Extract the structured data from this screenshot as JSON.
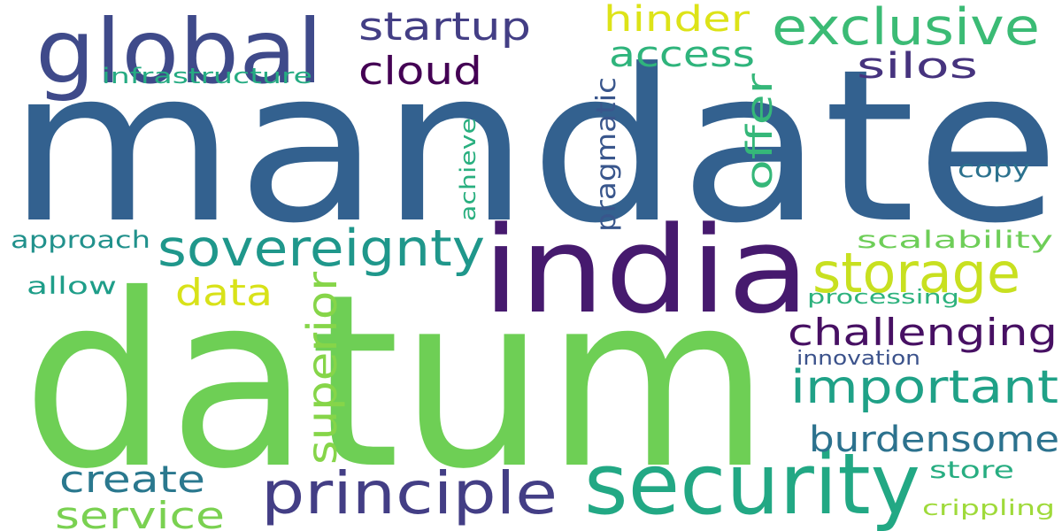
{
  "background": "#ffffff",
  "words": [
    {
      "text": "mandate",
      "color": "#33618f",
      "vertical": false
    },
    {
      "text": "datum",
      "color": "#6ecf55",
      "vertical": false
    },
    {
      "text": "india",
      "color": "#461a6e",
      "vertical": false
    },
    {
      "text": "security",
      "color": "#22a884",
      "vertical": false
    },
    {
      "text": "global",
      "color": "#3f4a8a",
      "vertical": false
    },
    {
      "text": "principle",
      "color": "#433e85",
      "vertical": false
    },
    {
      "text": "sovereignty",
      "color": "#1f978b",
      "vertical": false
    },
    {
      "text": "exclusive",
      "color": "#3bbb75",
      "vertical": false
    },
    {
      "text": "important",
      "color": "#1fa187",
      "vertical": false
    },
    {
      "text": "storage",
      "color": "#c8e020",
      "vertical": false
    },
    {
      "text": "superior",
      "color": "#86d549",
      "vertical": true
    },
    {
      "text": "challenging",
      "color": "#471063",
      "vertical": false
    },
    {
      "text": "burdensome",
      "color": "#2c728e",
      "vertical": false
    },
    {
      "text": "startup",
      "color": "#433e85",
      "vertical": false
    },
    {
      "text": "cloud",
      "color": "#440154",
      "vertical": false
    },
    {
      "text": "access",
      "color": "#2fb47c",
      "vertical": false
    },
    {
      "text": "hinder",
      "color": "#dde318",
      "vertical": false
    },
    {
      "text": "silos",
      "color": "#46337e",
      "vertical": false
    },
    {
      "text": "create",
      "color": "#2a788e",
      "vertical": false
    },
    {
      "text": "service",
      "color": "#7ad151",
      "vertical": false
    },
    {
      "text": "data",
      "color": "#d8e219",
      "vertical": false
    },
    {
      "text": "offer",
      "color": "#35b779",
      "vertical": true
    },
    {
      "text": "pragmatic",
      "color": "#39568c",
      "vertical": true
    },
    {
      "text": "approach",
      "color": "#21918c",
      "vertical": false
    },
    {
      "text": "allow",
      "color": "#1f9e89",
      "vertical": false
    },
    {
      "text": "scalability",
      "color": "#6ece58",
      "vertical": false
    },
    {
      "text": "copy",
      "color": "#2c728e",
      "vertical": false
    },
    {
      "text": "store",
      "color": "#27ad81",
      "vertical": false
    },
    {
      "text": "crippling",
      "color": "#9fda3a",
      "vertical": false
    },
    {
      "text": "infrastructure",
      "color": "#25ab82",
      "vertical": false
    },
    {
      "text": "achieve",
      "color": "#29af7f",
      "vertical": true
    },
    {
      "text": "processing",
      "color": "#2db27d",
      "vertical": false
    },
    {
      "text": "innovation",
      "color": "#3b528b",
      "vertical": false
    }
  ]
}
